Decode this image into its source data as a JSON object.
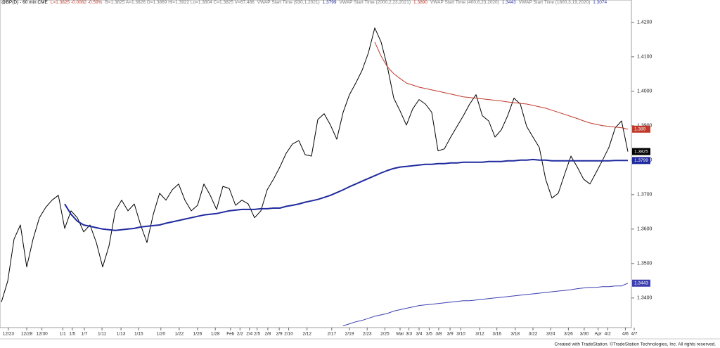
{
  "chart_data": {
    "type": "line",
    "header": [
      {
        "text": "@BP(D) - 60 min CME",
        "color": "#000000"
      },
      {
        "text": "L=1.3825 -0.0082 -0.59%",
        "color": "#c0392b"
      },
      {
        "text": "B=1.3825 A=1.3826 O=1.3869 Hi=1.3922 Lo=1.3804 C=1.3825 V=67,486",
        "color": "#777777"
      },
      {
        "text": "VWAP Start Time (930,1,2021)",
        "color": "#777777"
      },
      {
        "text": "1.3799",
        "color": "#1f2a9e"
      },
      {
        "text": "VWAP Start Time (2000,2,23,2021)",
        "color": "#777777"
      },
      {
        "text": "1.3890",
        "color": "#c0392b"
      },
      {
        "text": "VWAP Start Time (400,6,23,2020)",
        "color": "#777777"
      },
      {
        "text": "1.3443",
        "color": "#3b3fb0"
      },
      {
        "text": "VWAP Start Time (1800,3,19,2020)",
        "color": "#777777"
      },
      {
        "text": "1.3074",
        "color": "#3b3fb0"
      }
    ],
    "xlim": [
      0,
      100
    ],
    "ylim": [
      1.3316,
      1.4265
    ],
    "yticks": [
      {
        "value": 1.34,
        "label": "1.3400"
      },
      {
        "value": 1.35,
        "label": "1.3500"
      },
      {
        "value": 1.36,
        "label": "1.3600"
      },
      {
        "value": 1.37,
        "label": "1.3700"
      },
      {
        "value": 1.38,
        "label": "1.3800"
      },
      {
        "value": 1.39,
        "label": "1.3900"
      },
      {
        "value": 1.4,
        "label": "1.4000"
      },
      {
        "value": 1.41,
        "label": "1.4100"
      },
      {
        "value": 1.42,
        "label": "1.4200"
      }
    ],
    "xticks": [
      {
        "value": 1.1,
        "label": "12/23"
      },
      {
        "value": 4,
        "label": "12/28"
      },
      {
        "value": 6.4,
        "label": "12/30"
      },
      {
        "value": 9.7,
        "label": "1/1"
      },
      {
        "value": 11.2,
        "label": "1/5"
      },
      {
        "value": 13.1,
        "label": "1/7"
      },
      {
        "value": 15.9,
        "label": "1/11"
      },
      {
        "value": 18.9,
        "label": "1/13"
      },
      {
        "value": 21.7,
        "label": "1/15"
      },
      {
        "value": 25.2,
        "label": "1/20"
      },
      {
        "value": 28.1,
        "label": "1/22"
      },
      {
        "value": 31,
        "label": "1/26"
      },
      {
        "value": 33.8,
        "label": "1/28"
      },
      {
        "value": 36.2,
        "label": "Feb"
      },
      {
        "value": 37.7,
        "label": "2/2"
      },
      {
        "value": 39.2,
        "label": "2/4"
      },
      {
        "value": 40.4,
        "label": "2/5"
      },
      {
        "value": 42.1,
        "label": "2/8"
      },
      {
        "value": 43.9,
        "label": "2/9"
      },
      {
        "value": 45.4,
        "label": "2/10"
      },
      {
        "value": 48.3,
        "label": "2/12"
      },
      {
        "value": 52.2,
        "label": "2/17"
      },
      {
        "value": 55,
        "label": "2/19"
      },
      {
        "value": 57.8,
        "label": "2/23"
      },
      {
        "value": 60.6,
        "label": "2/25"
      },
      {
        "value": 63,
        "label": "Mar"
      },
      {
        "value": 64.4,
        "label": "3/3"
      },
      {
        "value": 66,
        "label": "3/4"
      },
      {
        "value": 67.6,
        "label": "3/5"
      },
      {
        "value": 69.1,
        "label": "3/8"
      },
      {
        "value": 70.9,
        "label": "3/9"
      },
      {
        "value": 72.6,
        "label": "3/10"
      },
      {
        "value": 75.6,
        "label": "3/12"
      },
      {
        "value": 78.3,
        "label": "3/16"
      },
      {
        "value": 81.2,
        "label": "3/18"
      },
      {
        "value": 84,
        "label": "3/22"
      },
      {
        "value": 86.8,
        "label": "3/24"
      },
      {
        "value": 89.6,
        "label": "3/26"
      },
      {
        "value": 92.1,
        "label": "3/30"
      },
      {
        "value": 94.3,
        "label": "Apr"
      },
      {
        "value": 95.8,
        "label": "4/2"
      },
      {
        "value": 98.6,
        "label": "4/6"
      },
      {
        "value": 100,
        "label": "4/7"
      }
    ],
    "series": [
      {
        "color": "#000000",
        "width": 1,
        "values": [
          1.3388,
          1.3449,
          1.3571,
          1.3612,
          1.349,
          1.3571,
          1.3633,
          1.3663,
          1.3684,
          1.3698,
          1.3602,
          1.3653,
          1.3633,
          1.3592,
          1.3612,
          1.3561,
          1.349,
          1.3551,
          1.3653,
          1.3684,
          1.3653,
          1.3673,
          1.3612,
          1.3561,
          1.3643,
          1.3704,
          1.3684,
          1.3714,
          1.3731,
          1.3684,
          1.3653,
          1.3669,
          1.3731,
          1.3698,
          1.3657,
          1.3724,
          1.3718,
          1.3669,
          1.3684,
          1.3673,
          1.3633,
          1.3653,
          1.3714,
          1.3745,
          1.378,
          1.382,
          1.3847,
          1.3857,
          1.3816,
          1.3812,
          1.3918,
          1.3935,
          1.3902,
          1.3861,
          1.3939,
          1.399,
          1.4024,
          1.4061,
          1.4112,
          1.4184,
          1.4143,
          1.4071,
          1.398,
          1.3943,
          1.3902,
          1.3949,
          1.3976,
          1.3963,
          1.3939,
          1.3827,
          1.3833,
          1.3867,
          1.3898,
          1.3929,
          1.3963,
          1.399,
          1.3929,
          1.3914,
          1.3867,
          1.3888,
          1.3929,
          1.398,
          1.3963,
          1.3898,
          1.3867,
          1.3837,
          1.3745,
          1.369,
          1.3704,
          1.3759,
          1.3812,
          1.378,
          1.3745,
          1.3731,
          1.3765,
          1.38,
          1.3837,
          1.3894,
          1.3914,
          1.3825
        ]
      },
      {
        "color": "#1f2a9e",
        "width": 2,
        "values": [
          null,
          null,
          null,
          null,
          null,
          null,
          null,
          null,
          null,
          null,
          1.3673,
          1.3643,
          1.3623,
          1.3612,
          1.3608,
          1.3604,
          1.36,
          1.3598,
          1.3596,
          1.3598,
          1.36,
          1.3602,
          1.3606,
          1.3608,
          1.361,
          1.3612,
          1.3617,
          1.3621,
          1.3625,
          1.3629,
          1.3633,
          1.3637,
          1.3641,
          1.3643,
          1.3645,
          1.3649,
          1.3653,
          1.3655,
          1.3657,
          1.3657,
          1.3657,
          1.3659,
          1.3659,
          1.3661,
          1.3661,
          1.3666,
          1.3669,
          1.3673,
          1.3678,
          1.3682,
          1.3686,
          1.3692,
          1.3698,
          1.3706,
          1.3714,
          1.3723,
          1.3731,
          1.3739,
          1.3747,
          1.3755,
          1.3763,
          1.377,
          1.3776,
          1.378,
          1.3782,
          1.3784,
          1.3786,
          1.3788,
          1.3788,
          1.379,
          1.379,
          1.3792,
          1.3792,
          1.3794,
          1.3794,
          1.3794,
          1.3794,
          1.3796,
          1.3796,
          1.3796,
          1.3798,
          1.3798,
          1.38,
          1.38,
          1.3802,
          1.38,
          1.38,
          1.3798,
          1.3798,
          1.3798,
          1.3798,
          1.3798,
          1.3798,
          1.3798,
          1.3798,
          1.3798,
          1.3798,
          1.3799,
          1.3799,
          1.3799
        ]
      },
      {
        "color": "#c0392b",
        "width": 1,
        "values": [
          null,
          null,
          null,
          null,
          null,
          null,
          null,
          null,
          null,
          null,
          null,
          null,
          null,
          null,
          null,
          null,
          null,
          null,
          null,
          null,
          null,
          null,
          null,
          null,
          null,
          null,
          null,
          null,
          null,
          null,
          null,
          null,
          null,
          null,
          null,
          null,
          null,
          null,
          null,
          null,
          null,
          null,
          null,
          null,
          null,
          null,
          null,
          null,
          null,
          null,
          null,
          null,
          null,
          null,
          null,
          null,
          null,
          null,
          null,
          1.4143,
          1.4102,
          1.4071,
          1.4051,
          1.4037,
          1.4024,
          1.4018,
          1.4012,
          1.4008,
          1.4004,
          1.4,
          1.3996,
          1.3992,
          1.3988,
          1.3984,
          1.3982,
          1.398,
          1.3978,
          1.3976,
          1.3974,
          1.3972,
          1.3969,
          1.3967,
          1.3965,
          1.3963,
          1.3959,
          1.3955,
          1.3951,
          1.3945,
          1.3939,
          1.3933,
          1.3927,
          1.3921,
          1.3914,
          1.3908,
          1.3904,
          1.39,
          1.3898,
          1.3896,
          1.3894,
          1.389
        ]
      },
      {
        "color": "#3b3fb0",
        "width": 1,
        "values": [
          null,
          null,
          null,
          null,
          null,
          null,
          null,
          null,
          null,
          null,
          null,
          null,
          null,
          null,
          null,
          null,
          null,
          null,
          null,
          null,
          null,
          null,
          null,
          null,
          null,
          null,
          null,
          null,
          null,
          null,
          null,
          null,
          null,
          null,
          null,
          null,
          null,
          null,
          null,
          null,
          null,
          null,
          null,
          null,
          null,
          null,
          null,
          null,
          null,
          null,
          null,
          null,
          null,
          null,
          1.3319,
          1.3325,
          1.3331,
          1.3335,
          1.3341,
          1.3347,
          1.3351,
          1.3355,
          1.3362,
          1.3366,
          1.337,
          1.3374,
          1.3378,
          1.338,
          1.3382,
          1.3384,
          1.3386,
          1.3388,
          1.339,
          1.3392,
          1.3392,
          1.3394,
          1.3396,
          1.3398,
          1.34,
          1.3402,
          1.3404,
          1.3406,
          1.3408,
          1.341,
          1.3412,
          1.3414,
          1.3416,
          1.3418,
          1.342,
          1.3422,
          1.3424,
          1.3427,
          1.3429,
          1.3431,
          1.3431,
          1.3433,
          1.3433,
          1.3435,
          1.3435,
          1.3443
        ]
      }
    ],
    "footer": "Created with TradeStation. ©TradeStation Technologies, Inc. All rights reserved."
  }
}
